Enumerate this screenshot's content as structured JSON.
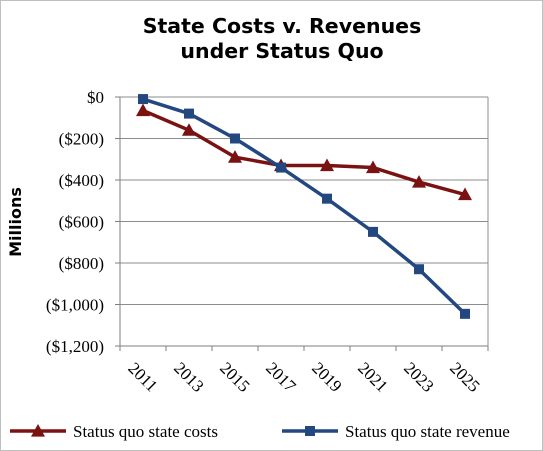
{
  "chart_data": {
    "type": "line",
    "title_lines": [
      "State Costs v. Revenues",
      "under Status Quo"
    ],
    "ylabel": "Millions",
    "xlabel": "",
    "categories": [
      "2011",
      "2013",
      "2015",
      "2017",
      "2019",
      "2021",
      "2023",
      "2025"
    ],
    "yticks": [
      "$0",
      "($200)",
      "($400)",
      "($600)",
      "($800)",
      "($1,000)",
      "($1,200)"
    ],
    "ylim": [
      -1200,
      0
    ],
    "grid": true,
    "legend_position": "bottom",
    "series": [
      {
        "name": "Status quo state costs",
        "color": "#7b1212",
        "marker": "triangle",
        "values": [
          -65,
          -160,
          -290,
          -330,
          -330,
          -340,
          -410,
          -470
        ]
      },
      {
        "name": "Status quo state revenue",
        "color": "#23477f",
        "marker": "square",
        "values": [
          -10,
          -80,
          -200,
          -340,
          -490,
          -650,
          -830,
          -1045
        ]
      }
    ]
  }
}
